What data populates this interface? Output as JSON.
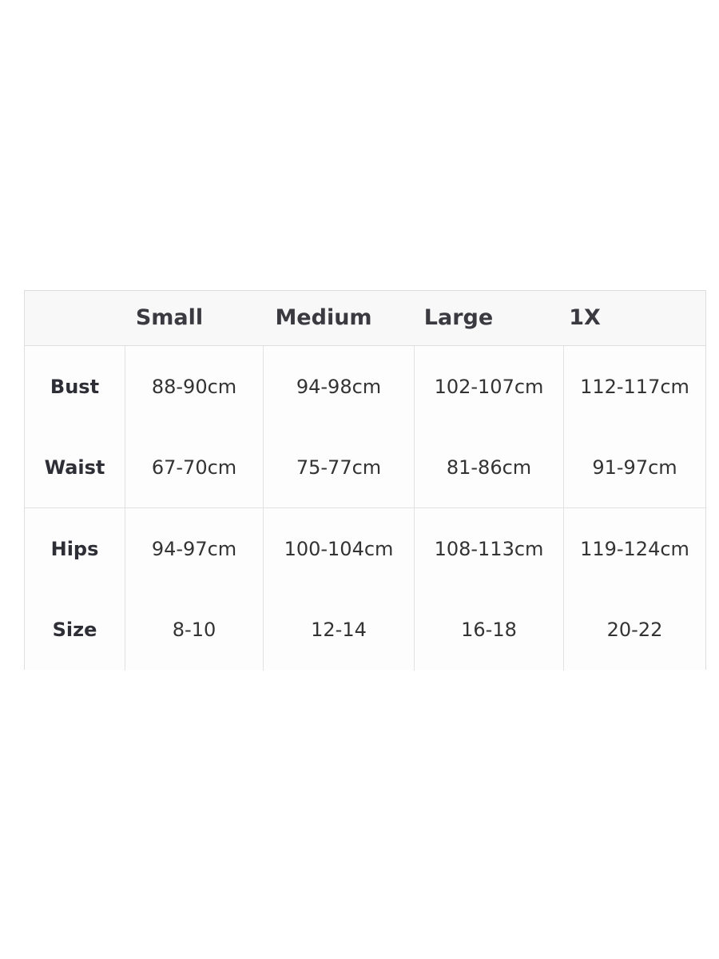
{
  "headers": [
    "Small",
    "Medium",
    "Large",
    "1X"
  ],
  "rows": [
    {
      "label": "Bust",
      "values": [
        "88-90cm",
        "94-98cm",
        "102-107cm",
        "112-117cm"
      ]
    },
    {
      "label": "Waist",
      "values": [
        "67-70cm",
        "75-77cm",
        "81-86cm",
        "91-97cm"
      ]
    },
    {
      "label": "Hips",
      "values": [
        "94-97cm",
        "100-104cm",
        "108-113cm",
        "119-124cm"
      ]
    },
    {
      "label": "Size",
      "values": [
        "8-10",
        "12-14",
        "16-18",
        "20-22"
      ]
    }
  ]
}
